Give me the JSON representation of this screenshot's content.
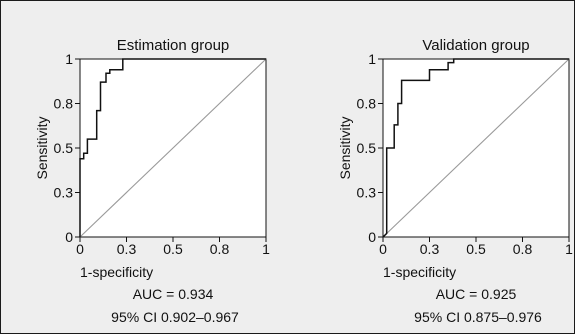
{
  "chart_data": [
    {
      "type": "line",
      "title": "Estimation group",
      "xlabel": "1-specificity",
      "ylabel": "Sensitivity",
      "xlim": [
        0,
        1
      ],
      "ylim": [
        0,
        1
      ],
      "x_ticks": [
        "0",
        "0.3",
        "0.5",
        "0.8",
        "1"
      ],
      "y_ticks": [
        "0",
        "0.3",
        "0.5",
        "0.8",
        "1"
      ],
      "x_tick_values": [
        0,
        0.25,
        0.5,
        0.75,
        1
      ],
      "y_tick_values": [
        0,
        0.25,
        0.5,
        0.75,
        1
      ],
      "grid": false,
      "series": [
        {
          "points": [
            [
              0,
              0
            ],
            [
              0,
              0.44
            ],
            [
              0.02,
              0.44
            ],
            [
              0.02,
              0.47
            ],
            [
              0.04,
              0.47
            ],
            [
              0.04,
              0.55
            ],
            [
              0.09,
              0.55
            ],
            [
              0.09,
              0.71
            ],
            [
              0.11,
              0.71
            ],
            [
              0.11,
              0.87
            ],
            [
              0.14,
              0.87
            ],
            [
              0.14,
              0.92
            ],
            [
              0.16,
              0.92
            ],
            [
              0.16,
              0.94
            ],
            [
              0.23,
              0.94
            ],
            [
              0.23,
              1.0
            ],
            [
              0.37,
              1.0
            ],
            [
              1.0,
              1.0
            ]
          ],
          "color": "#111111"
        },
        {
          "points": [
            [
              0,
              0
            ],
            [
              1,
              1
            ]
          ],
          "color": "#9a9a9a"
        }
      ],
      "auc_text": "AUC = 0.934",
      "ci_text": "95% CI 0.902–0.967"
    },
    {
      "type": "line",
      "title": "Validation group",
      "xlabel": "1-specificity",
      "ylabel": "Sensitivity",
      "xlim": [
        0,
        1
      ],
      "ylim": [
        0,
        1
      ],
      "x_ticks": [
        "0",
        "0.3",
        "0.5",
        "0.8",
        "1"
      ],
      "y_ticks": [
        "0",
        "0.3",
        "0.5",
        "0.8",
        "1"
      ],
      "x_tick_values": [
        0,
        0.25,
        0.5,
        0.75,
        1
      ],
      "y_tick_values": [
        0,
        0.25,
        0.5,
        0.75,
        1
      ],
      "grid": false,
      "series": [
        {
          "points": [
            [
              0,
              0
            ],
            [
              0.02,
              0.02
            ],
            [
              0.02,
              0.5
            ],
            [
              0.06,
              0.5
            ],
            [
              0.06,
              0.63
            ],
            [
              0.08,
              0.63
            ],
            [
              0.08,
              0.75
            ],
            [
              0.1,
              0.75
            ],
            [
              0.1,
              0.88
            ],
            [
              0.25,
              0.88
            ],
            [
              0.25,
              0.94
            ],
            [
              0.35,
              0.94
            ],
            [
              0.35,
              0.98
            ],
            [
              0.38,
              0.98
            ],
            [
              0.38,
              1.0
            ],
            [
              1.0,
              1.0
            ]
          ],
          "color": "#111111"
        },
        {
          "points": [
            [
              0,
              0
            ],
            [
              1,
              1
            ]
          ],
          "color": "#9a9a9a"
        }
      ],
      "auc_text": "AUC = 0.925",
      "ci_text": "95% CI 0.875–0.976"
    }
  ]
}
